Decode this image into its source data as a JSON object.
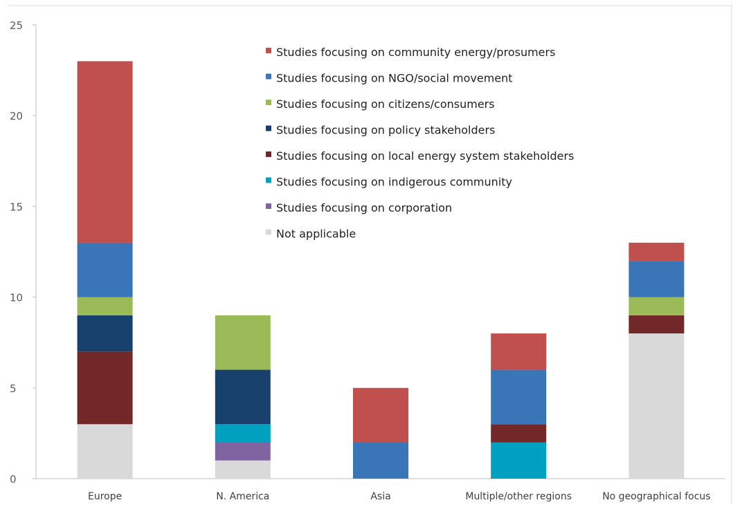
{
  "chart_data": {
    "type": "bar",
    "stacked": true,
    "title": "",
    "xlabel": "",
    "ylabel": "",
    "ylim": [
      0,
      25
    ],
    "yticks": [
      0,
      5,
      10,
      15,
      20,
      25
    ],
    "grid": false,
    "legend_position": "top-center",
    "categories": [
      "Europe",
      "N. America",
      "Asia",
      "Multiple/other regions",
      "No geographical focus"
    ],
    "series": [
      {
        "name": "Not applicable",
        "color": "#d9d9d9",
        "values": [
          3,
          1,
          0,
          0,
          8
        ]
      },
      {
        "name": "Studies focusing on corporation",
        "color": "#8064a2",
        "values": [
          0,
          1,
          0,
          0,
          0
        ]
      },
      {
        "name": "Studies focusing on indigerous community",
        "color": "#00a0c0",
        "values": [
          0,
          1,
          0,
          2,
          0
        ]
      },
      {
        "name": "Studies focusing on local energy system stakeholders",
        "color": "#722829",
        "values": [
          4,
          0,
          0,
          1,
          1
        ]
      },
      {
        "name": "Studies focusing on policy stakeholders",
        "color": "#17406d",
        "values": [
          2,
          3,
          0,
          0,
          0
        ]
      },
      {
        "name": "Studies focusing on citizens/consumers",
        "color": "#9bbb59",
        "values": [
          1,
          3,
          0,
          0,
          1
        ]
      },
      {
        "name": "Studies focusing on NGO/social movement",
        "color": "#3a75b8",
        "values": [
          3,
          0,
          2,
          3,
          2
        ]
      },
      {
        "name": "Studies focusing on community energy/prosumers",
        "color": "#c0504d",
        "values": [
          10,
          0,
          3,
          2,
          1
        ]
      }
    ],
    "legend_order": [
      "Studies focusing on community energy/prosumers",
      "Studies focusing on NGO/social movement",
      "Studies focusing on citizens/consumers",
      "Studies focusing on policy stakeholders",
      "Studies focusing on local energy system stakeholders",
      "Studies focusing on indigerous community",
      "Studies focusing on corporation",
      "Not applicable"
    ]
  }
}
